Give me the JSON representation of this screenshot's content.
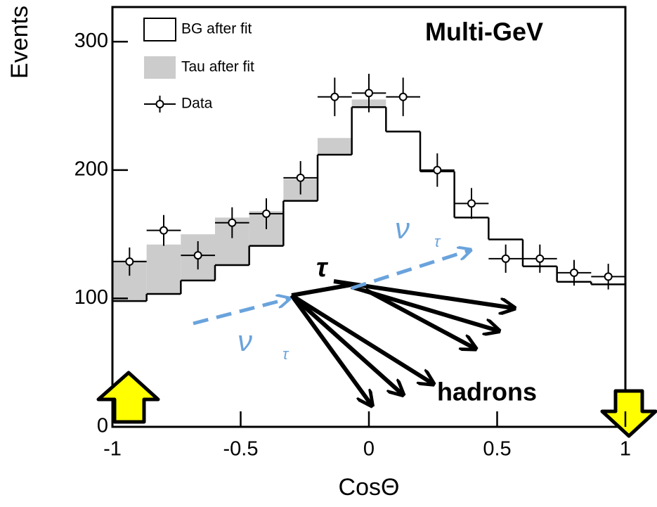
{
  "chart_data": {
    "type": "histogram",
    "x_label": "CosΘ",
    "y_label": "Events",
    "bins": [
      -1,
      -0.8667,
      -0.7333,
      -0.6,
      -0.4667,
      -0.3333,
      -0.2,
      -0.0667,
      0.0667,
      0.2,
      0.3333,
      0.4667,
      0.6,
      0.7333,
      0.8667,
      1
    ],
    "series": [
      {
        "name": "BG after fit",
        "color": "#000000",
        "values": [
          98,
          103.5,
          114,
          126,
          141,
          176,
          212,
          249,
          230,
          199,
          163,
          146,
          125,
          113,
          111
        ]
      },
      {
        "name": "Tau after fit",
        "color": "#cccccc",
        "values": [
          32,
          38.5,
          36,
          37,
          27,
          17,
          13,
          6,
          1,
          1,
          0,
          0,
          0,
          0,
          0
        ]
      },
      {
        "name": "Data",
        "color": "#000000",
        "values": [
          128.7,
          153,
          133.6,
          159,
          166,
          194,
          257,
          260,
          257,
          200,
          174,
          131,
          131,
          120,
          117
        ],
        "errors": [
          11,
          12,
          11,
          12,
          12,
          13,
          15,
          15,
          15,
          13,
          12,
          11,
          11,
          10,
          10
        ]
      }
    ],
    "xlim": [
      -1,
      1
    ],
    "ylim": [
      0,
      327
    ],
    "xticks": [
      -1,
      -0.5,
      0,
      0.5,
      1
    ],
    "yticks": [
      0,
      100,
      200,
      300
    ],
    "legend": "top-left",
    "annotations": [
      "Multi-GeV",
      "τ",
      "hadrons",
      "ν",
      "τ",
      "ν",
      "τ"
    ]
  }
}
